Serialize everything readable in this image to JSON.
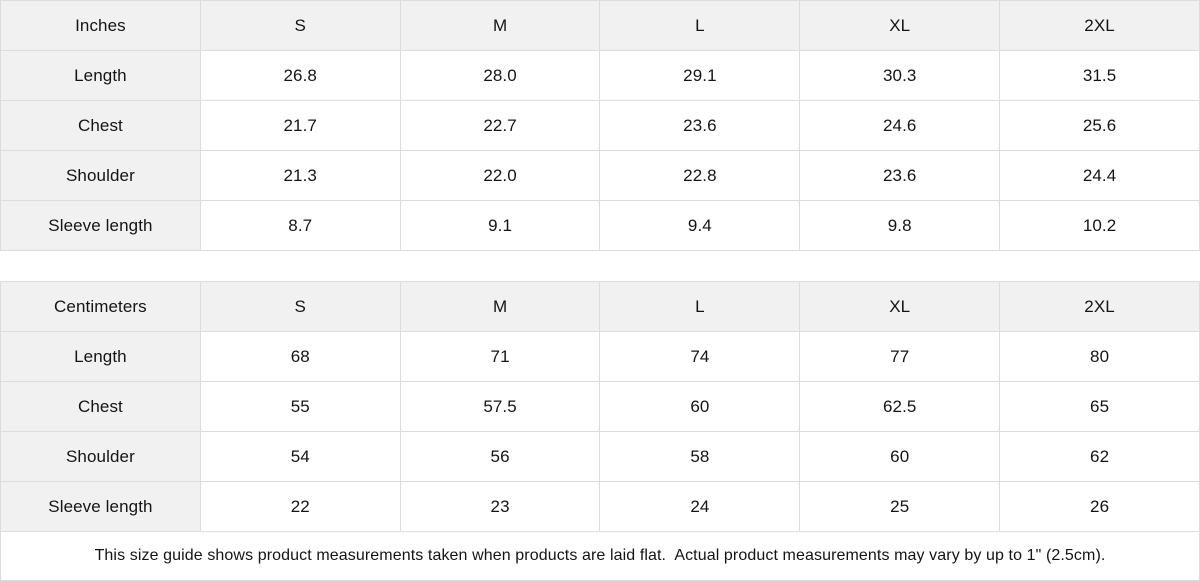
{
  "colors": {
    "header_bg": "#f1f1f1",
    "border": "#dcdcdc",
    "text": "#141414",
    "background": "#ffffff"
  },
  "inches": {
    "unit_label": "Inches",
    "sizes": [
      "S",
      "M",
      "L",
      "XL",
      "2XL"
    ],
    "rows": [
      {
        "label": "Length",
        "values": [
          "26.8",
          "28.0",
          "29.1",
          "30.3",
          "31.5"
        ]
      },
      {
        "label": "Chest",
        "values": [
          "21.7",
          "22.7",
          "23.6",
          "24.6",
          "25.6"
        ]
      },
      {
        "label": "Shoulder",
        "values": [
          "21.3",
          "22.0",
          "22.8",
          "23.6",
          "24.4"
        ]
      },
      {
        "label": "Sleeve length",
        "values": [
          "8.7",
          "9.1",
          "9.4",
          "9.8",
          "10.2"
        ]
      }
    ]
  },
  "centimeters": {
    "unit_label": "Centimeters",
    "sizes": [
      "S",
      "M",
      "L",
      "XL",
      "2XL"
    ],
    "rows": [
      {
        "label": "Length",
        "values": [
          "68",
          "71",
          "74",
          "77",
          "80"
        ]
      },
      {
        "label": "Chest",
        "values": [
          "55",
          "57.5",
          "60",
          "62.5",
          "65"
        ]
      },
      {
        "label": "Shoulder",
        "values": [
          "54",
          "56",
          "58",
          "60",
          "62"
        ]
      },
      {
        "label": "Sleeve length",
        "values": [
          "22",
          "23",
          "24",
          "25",
          "26"
        ]
      }
    ]
  },
  "footer": {
    "note": "This size guide shows product measurements taken when products are laid flat.  Actual product measurements may vary by up to 1\" (2.5cm)."
  }
}
